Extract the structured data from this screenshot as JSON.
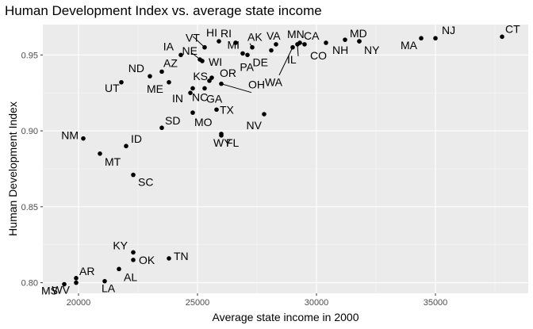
{
  "chart_data": {
    "type": "scatter",
    "title": "Human Development Index vs. average state income",
    "xlabel": "Average state income in 2000",
    "ylabel": "Human Development Index",
    "xlim": [
      18500,
      38900
    ],
    "ylim": [
      0.793,
      0.97
    ],
    "x_ticks": [
      20000,
      25000,
      30000,
      35000
    ],
    "y_ticks": [
      0.8,
      0.85,
      0.9,
      0.95
    ],
    "y_tick_labels": [
      "0.80",
      "0.85",
      "0.90",
      "0.95"
    ],
    "grid": true,
    "points": [
      {
        "label": "CT",
        "x": 37800,
        "y": 0.962
      },
      {
        "label": "NJ",
        "x": 35000,
        "y": 0.961
      },
      {
        "label": "MA",
        "x": 34400,
        "y": 0.961
      },
      {
        "label": "MD",
        "x": 31800,
        "y": 0.959
      },
      {
        "label": "NH",
        "x": 31200,
        "y": 0.96
      },
      {
        "label": "NY",
        "x": 31800,
        "y": 0.959
      },
      {
        "label": "CO",
        "x": 30400,
        "y": 0.958
      },
      {
        "label": "CA",
        "x": 29500,
        "y": 0.957
      },
      {
        "label": "MN",
        "x": 29300,
        "y": 0.958
      },
      {
        "label": "IL",
        "x": 29200,
        "y": 0.957
      },
      {
        "label": "WA",
        "x": 29000,
        "y": 0.955
      },
      {
        "label": "VA",
        "x": 28300,
        "y": 0.957
      },
      {
        "label": "DE",
        "x": 28100,
        "y": 0.953
      },
      {
        "label": "AK",
        "x": 27300,
        "y": 0.955
      },
      {
        "label": "RI",
        "x": 26600,
        "y": 0.958
      },
      {
        "label": "PA",
        "x": 27100,
        "y": 0.95
      },
      {
        "label": "MI",
        "x": 26900,
        "y": 0.951
      },
      {
        "label": "HI",
        "x": 25900,
        "y": 0.959
      },
      {
        "label": "VT",
        "x": 25300,
        "y": 0.955
      },
      {
        "label": "WI",
        "x": 25200,
        "y": 0.946
      },
      {
        "label": "NE",
        "x": 25100,
        "y": 0.947
      },
      {
        "label": "IA",
        "x": 24300,
        "y": 0.95
      },
      {
        "label": "OH",
        "x": 26000,
        "y": 0.931
      },
      {
        "label": "OR",
        "x": 25600,
        "y": 0.935
      },
      {
        "label": "KS",
        "x": 25500,
        "y": 0.933
      },
      {
        "label": "AZ",
        "x": 23500,
        "y": 0.939
      },
      {
        "label": "ND",
        "x": 23000,
        "y": 0.936
      },
      {
        "label": "UT",
        "x": 21800,
        "y": 0.932
      },
      {
        "label": "ME",
        "x": 23800,
        "y": 0.932
      },
      {
        "label": "IN",
        "x": 24700,
        "y": 0.925
      },
      {
        "label": "GA",
        "x": 25300,
        "y": 0.928
      },
      {
        "label": "NC",
        "x": 24800,
        "y": 0.928
      },
      {
        "label": "TX",
        "x": 25800,
        "y": 0.914
      },
      {
        "label": "MO",
        "x": 24800,
        "y": 0.912
      },
      {
        "label": "NV",
        "x": 27800,
        "y": 0.911
      },
      {
        "label": "SD",
        "x": 23500,
        "y": 0.902
      },
      {
        "label": "WY",
        "x": 26000,
        "y": 0.898
      },
      {
        "label": "FL",
        "x": 26000,
        "y": 0.897
      },
      {
        "label": "NM",
        "x": 20200,
        "y": 0.895
      },
      {
        "label": "ID",
        "x": 22000,
        "y": 0.89
      },
      {
        "label": "MT",
        "x": 20900,
        "y": 0.885
      },
      {
        "label": "SC",
        "x": 22300,
        "y": 0.871
      },
      {
        "label": "KY",
        "x": 22300,
        "y": 0.82
      },
      {
        "label": "TN",
        "x": 23800,
        "y": 0.816
      },
      {
        "label": "OK",
        "x": 22300,
        "y": 0.815
      },
      {
        "label": "AL",
        "x": 21700,
        "y": 0.809
      },
      {
        "label": "AR",
        "x": 19900,
        "y": 0.803
      },
      {
        "label": "LA",
        "x": 21100,
        "y": 0.801
      },
      {
        "label": "WV",
        "x": 19900,
        "y": 0.8
      },
      {
        "label": "MS",
        "x": 19400,
        "y": 0.799
      }
    ]
  }
}
